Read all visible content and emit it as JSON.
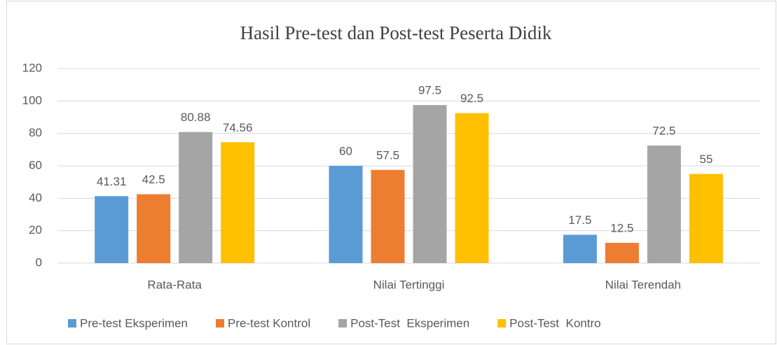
{
  "chart_data": {
    "type": "bar",
    "title": "Hasil Pre-test dan Post-test Peserta Didik",
    "categories": [
      "Rata-Rata",
      "Nilai Tertinggi",
      "Nilai Terendah"
    ],
    "series": [
      {
        "name": "Pre-test Eksperimen",
        "color": "#5b9bd5",
        "values": [
          41.31,
          60,
          17.5
        ]
      },
      {
        "name": "Pre-test Kontrol",
        "color": "#ed7d31",
        "values": [
          42.5,
          57.5,
          12.5
        ]
      },
      {
        "name": "Post-Test  Eksperimen",
        "color": "#a5a5a5",
        "values": [
          80.88,
          97.5,
          72.5
        ]
      },
      {
        "name": "Post-Test  Kontro",
        "color": "#ffc000",
        "values": [
          74.56,
          92.5,
          55
        ]
      }
    ],
    "ylim": [
      0,
      120
    ],
    "yticks": [
      0,
      20,
      40,
      60,
      80,
      100,
      120
    ],
    "grid": true,
    "legend": "bottom"
  }
}
